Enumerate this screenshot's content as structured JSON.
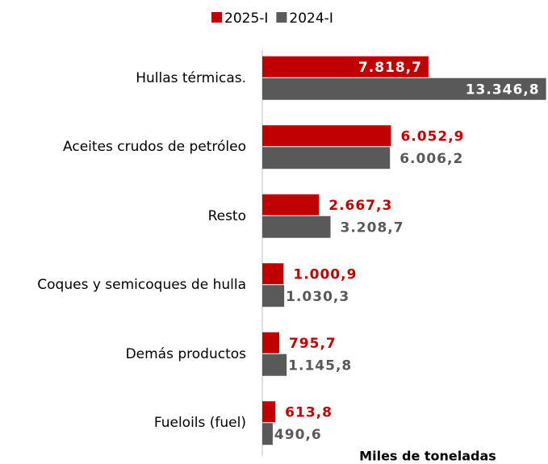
{
  "chart_data": {
    "type": "bar",
    "orientation": "horizontal",
    "categories": [
      "Hullas térmicas.",
      "Aceites crudos de petróleo",
      "Resto",
      "Coques y semicoques de hulla",
      "Demás productos",
      "Fueloils (fuel)"
    ],
    "series": [
      {
        "name": "2025-I",
        "color": "#c00000",
        "values": [
          7818.7,
          6052.9,
          2667.3,
          1000.9,
          795.7,
          613.8
        ],
        "value_labels": [
          "7.818,7",
          "6.052,9",
          "2.667,3",
          "1.000,9",
          "795,7",
          "613,8"
        ]
      },
      {
        "name": "2024-I",
        "color": "#595959",
        "values": [
          13346.8,
          6006.2,
          3208.7,
          1030.3,
          1145.8,
          490.6
        ],
        "value_labels": [
          "13.346,8",
          "6.006,2",
          "3.208,7",
          "1.030,3",
          "1.145,8",
          "490,6"
        ]
      }
    ],
    "xlim": [
      0,
      13400
    ],
    "xlabel": "Miles de toneladas",
    "legend": "top"
  }
}
